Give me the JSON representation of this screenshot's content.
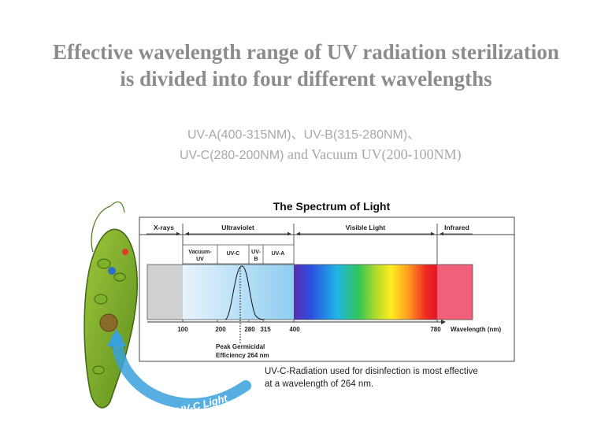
{
  "heading": {
    "line1": "Effective wavelength range of UV radiation sterilization",
    "line2": "is divided into four different wavelengths"
  },
  "subheading": {
    "line1": "UV-A(400-315NM)、UV-B(315-280NM)、",
    "line2a": "UV-C(280-200NM)",
    "line2b": " and Vacuum UV(200-100NM)"
  },
  "diagram": {
    "title": "The Spectrum of Light",
    "regions": {
      "xrays": "X-rays",
      "ultraviolet": "Ultraviolet",
      "visible": "Visible Light",
      "infrared": "Infrared"
    },
    "uv_bands": {
      "vacuum_line1": "Vacuum-",
      "vacuum_line2": "UV",
      "uvc": "UV-C",
      "uvb_line1": "UV-",
      "uvb_line2": "B",
      "uva": "UV-A"
    },
    "ticks": {
      "t100": "100",
      "t200": "200",
      "t280": "280",
      "t315": "315",
      "t400": "400",
      "t780": "780"
    },
    "axis_label": "Wavelength (nm)",
    "peak_label_line1": "Peak Germicidal",
    "peak_label_line2": "Efficiency 264 nm",
    "caption_line1": "UV-C-Radiation used for disinfection is most effective",
    "caption_line2": "at a wavelength of 264 nm.",
    "arrow_label": "UV-C Light",
    "colors": {
      "heading": "#8c8c8c",
      "frame": "#444444",
      "xray_band": "#d0d0d0",
      "uv_band": "#bfe3f7",
      "infrared_band": "#f0607a",
      "arrow": "#3aa0dc"
    }
  }
}
